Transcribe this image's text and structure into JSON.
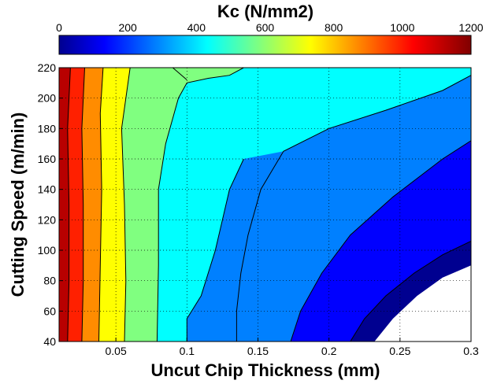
{
  "chart_data": {
    "type": "contour",
    "colorbar": {
      "title": "Kc (N/mm2)",
      "ticks": [
        0,
        200,
        400,
        600,
        800,
        1000,
        1200
      ],
      "range": [
        0,
        1200
      ],
      "colormap": "jet"
    },
    "xlabel": "Uncut Chip Thickness (mm)",
    "ylabel": "Cutting Speed (m/min)",
    "xlim": [
      0.01,
      0.3
    ],
    "ylim": [
      40,
      220
    ],
    "xticks": [
      0.05,
      0.1,
      0.15,
      0.2,
      0.25,
      0.3
    ],
    "yticks": [
      40,
      60,
      80,
      100,
      120,
      140,
      160,
      180,
      200,
      220
    ],
    "grid": true,
    "levels": [
      {
        "kc_min": 1100,
        "kc_max": 1200,
        "color": "#b80000"
      },
      {
        "kc_min": 1000,
        "kc_max": 1100,
        "color": "#ff2000"
      },
      {
        "kc_min": 900,
        "kc_max": 1000,
        "color": "#ff8c00"
      },
      {
        "kc_min": 800,
        "kc_max": 900,
        "color": "#ffff00"
      },
      {
        "kc_min": 600,
        "kc_max": 800,
        "color": "#80ff80"
      },
      {
        "kc_min": 400,
        "kc_max": 600,
        "color": "#00ffff"
      },
      {
        "kc_min": 300,
        "kc_max": 400,
        "color": "#0080ff"
      },
      {
        "kc_min": 200,
        "kc_max": 300,
        "color": "#0000ff"
      },
      {
        "kc_min": 100,
        "kc_max": 200,
        "color": "#000090"
      }
    ],
    "contour_lines": [
      {
        "level": 1000,
        "points": [
          [
            0.016,
            40
          ],
          [
            0.017,
            80
          ],
          [
            0.017,
            130
          ],
          [
            0.016,
            180
          ],
          [
            0.018,
            220
          ]
        ]
      },
      {
        "level": 900,
        "points": [
          [
            0.026,
            40
          ],
          [
            0.027,
            80
          ],
          [
            0.027,
            130
          ],
          [
            0.026,
            180
          ],
          [
            0.028,
            220
          ]
        ]
      },
      {
        "level": 800,
        "points": [
          [
            0.038,
            40
          ],
          [
            0.039,
            90
          ],
          [
            0.04,
            140
          ],
          [
            0.039,
            190
          ],
          [
            0.041,
            220
          ]
        ]
      },
      {
        "level": 700,
        "points": [
          [
            0.056,
            40
          ],
          [
            0.057,
            80
          ],
          [
            0.056,
            130
          ],
          [
            0.054,
            180
          ],
          [
            0.06,
            220
          ]
        ]
      },
      {
        "level": 600,
        "points": [
          [
            0.079,
            40
          ],
          [
            0.08,
            90
          ],
          [
            0.08,
            140
          ],
          [
            0.085,
            170
          ],
          [
            0.094,
            200
          ],
          [
            0.1,
            210
          ],
          [
            0.115,
            213
          ],
          [
            0.13,
            215
          ],
          [
            0.14,
            220
          ]
        ]
      },
      {
        "level": 400,
        "points": [
          [
            0.135,
            40
          ],
          [
            0.135,
            60
          ],
          [
            0.138,
            85
          ],
          [
            0.143,
            110
          ],
          [
            0.152,
            140
          ],
          [
            0.168,
            165
          ],
          [
            0.2,
            180
          ],
          [
            0.24,
            192
          ],
          [
            0.28,
            205
          ],
          [
            0.3,
            215
          ]
        ]
      },
      {
        "level": 300,
        "points": [
          [
            0.173,
            40
          ],
          [
            0.18,
            60
          ],
          [
            0.195,
            85
          ],
          [
            0.215,
            110
          ],
          [
            0.245,
            135
          ],
          [
            0.28,
            160
          ],
          [
            0.3,
            172
          ]
        ]
      },
      {
        "level": 200,
        "points": [
          [
            0.215,
            40
          ],
          [
            0.225,
            55
          ],
          [
            0.24,
            70
          ],
          [
            0.26,
            85
          ],
          [
            0.28,
            97
          ],
          [
            0.3,
            106
          ]
        ]
      },
      {
        "level": 500,
        "points": [
          [
            0.09,
            220
          ],
          [
            0.1,
            212
          ]
        ]
      }
    ],
    "white_region_note": "",
    "left_bulge": {
      "level": 300,
      "points": [
        [
          0.1,
          40
        ],
        [
          0.1,
          55
        ],
        [
          0.11,
          70
        ],
        [
          0.12,
          100
        ],
        [
          0.13,
          140
        ],
        [
          0.14,
          160
        ]
      ]
    }
  }
}
